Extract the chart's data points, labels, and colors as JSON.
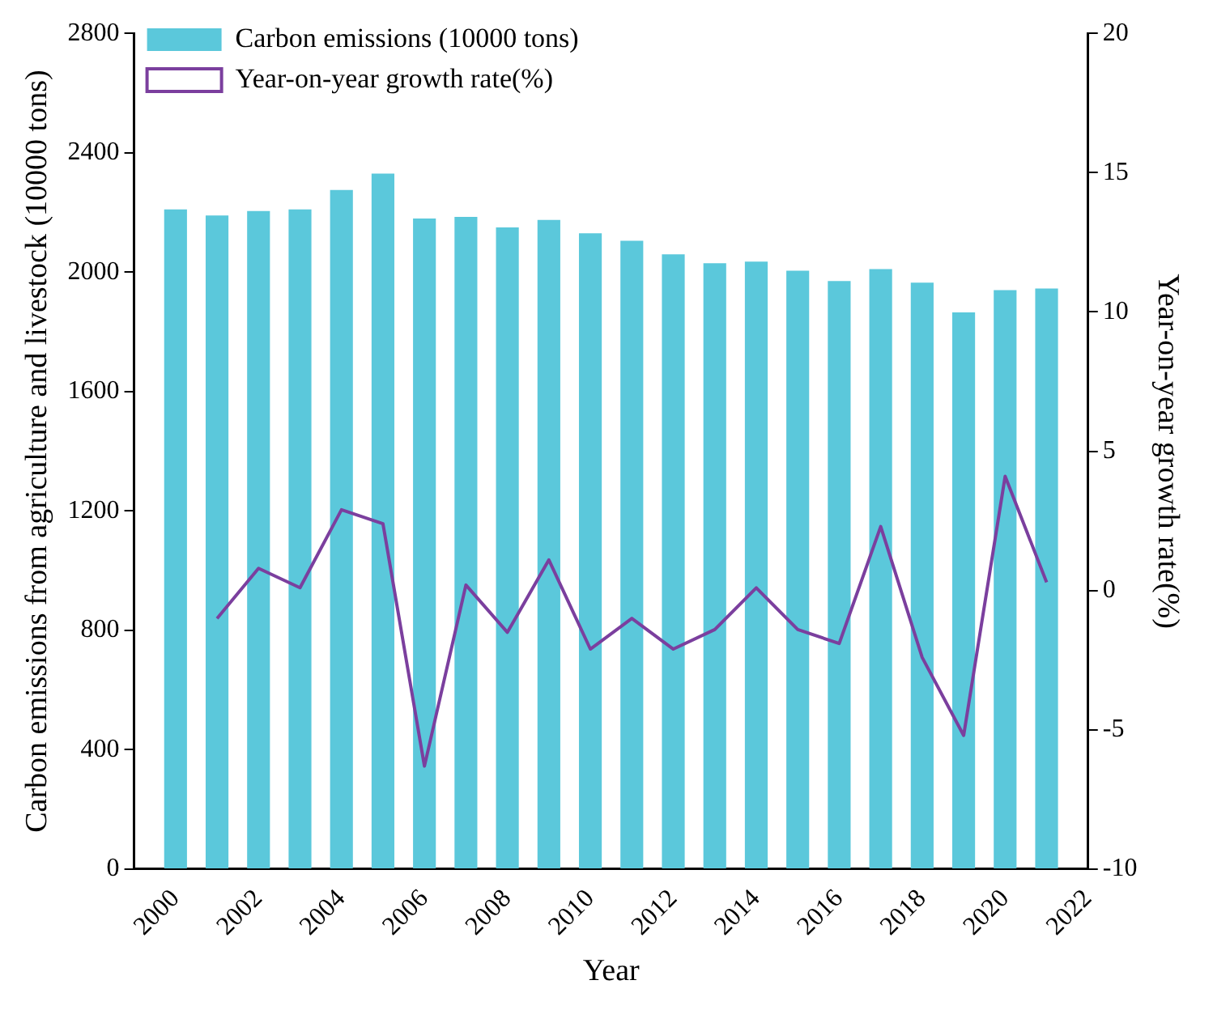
{
  "chart_data": {
    "type": "bar",
    "xlabel": "Year",
    "ylabel": "Carbon emissions from agriculture and livestock (10000 tons)",
    "y2label": "Year-on-year growth rate(%)",
    "x": [
      2000,
      2001,
      2002,
      2003,
      2004,
      2005,
      2006,
      2007,
      2008,
      2009,
      2010,
      2011,
      2012,
      2013,
      2014,
      2015,
      2016,
      2017,
      2018,
      2019,
      2020,
      2021
    ],
    "series": [
      {
        "name": "Carbon emissions (10000 tons)",
        "color": "#5bc8db",
        "values": [
          2210,
          2190,
          2205,
          2210,
          2275,
          2330,
          2180,
          2185,
          2150,
          2175,
          2130,
          2105,
          2060,
          2030,
          2035,
          2005,
          1970,
          2010,
          1965,
          1865,
          1940,
          1945
        ]
      },
      {
        "name": "Year-on-year growth rate(%)",
        "type": "line",
        "axis": "y2",
        "color": "#7b3f9e",
        "values": [
          null,
          -1.0,
          0.8,
          0.1,
          2.9,
          2.4,
          -6.3,
          0.2,
          -1.5,
          1.1,
          -2.1,
          -1.0,
          -2.1,
          -1.4,
          0.1,
          -1.4,
          -1.9,
          2.3,
          -2.4,
          -5.2,
          4.1,
          0.3
        ]
      }
    ],
    "xlim": [
      1999,
      2022
    ],
    "xticks": [
      2000,
      2002,
      2004,
      2006,
      2008,
      2010,
      2012,
      2014,
      2016,
      2018,
      2020,
      2022
    ],
    "ylim": [
      0,
      2800
    ],
    "yticks": [
      0,
      400,
      800,
      1200,
      1600,
      2000,
      2400,
      2800
    ],
    "y2lim": [
      -10,
      20
    ],
    "y2ticks": [
      -10,
      -5,
      0,
      5,
      10,
      15,
      20
    ],
    "grid": false,
    "legend": "top left",
    "marker": "none",
    "line_style": "solid"
  }
}
